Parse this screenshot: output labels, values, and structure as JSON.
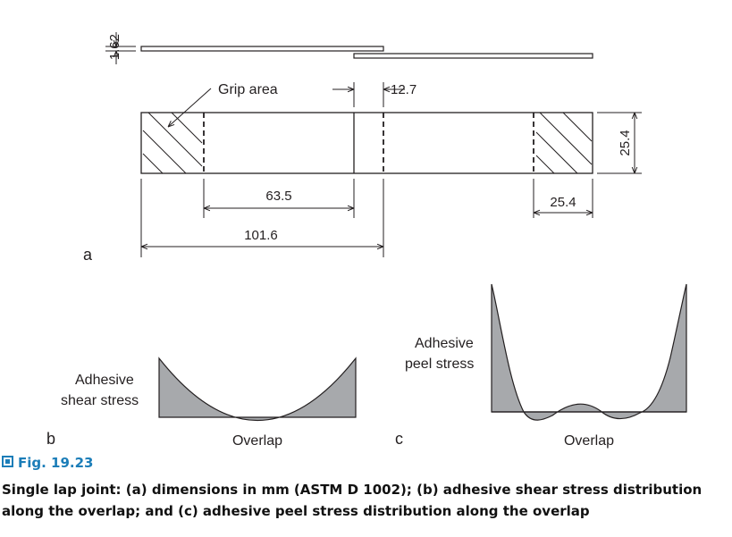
{
  "diagram": {
    "dimensions": {
      "thickness": "1.62",
      "overlap_length": "12.7",
      "grip_distance": "63.5",
      "total_length": "101.6",
      "width": "25.4",
      "grip_length": "25.4"
    },
    "labels": {
      "grip_area": "Grip area",
      "shear_stress_line1": "Adhesive",
      "shear_stress_line2": "shear stress",
      "peel_stress_line1": "Adhesive",
      "peel_stress_line2": "peel stress",
      "overlap_b": "Overlap",
      "overlap_c": "Overlap"
    },
    "panels": {
      "a": "a",
      "b": "b",
      "c": "c"
    },
    "colors": {
      "fill": "#a7a9ac",
      "line": "#231f20"
    }
  },
  "caption": {
    "figure_label": "Fig. 19.23",
    "text_parts": [
      "Single lap joint: (",
      "a",
      ") dimensions in mm (ASTM D 1002); (",
      "b",
      ") adhesive shear stress distribution along the overlap; and (",
      "c",
      ") adhesive peel stress distribution along the overlap"
    ]
  }
}
